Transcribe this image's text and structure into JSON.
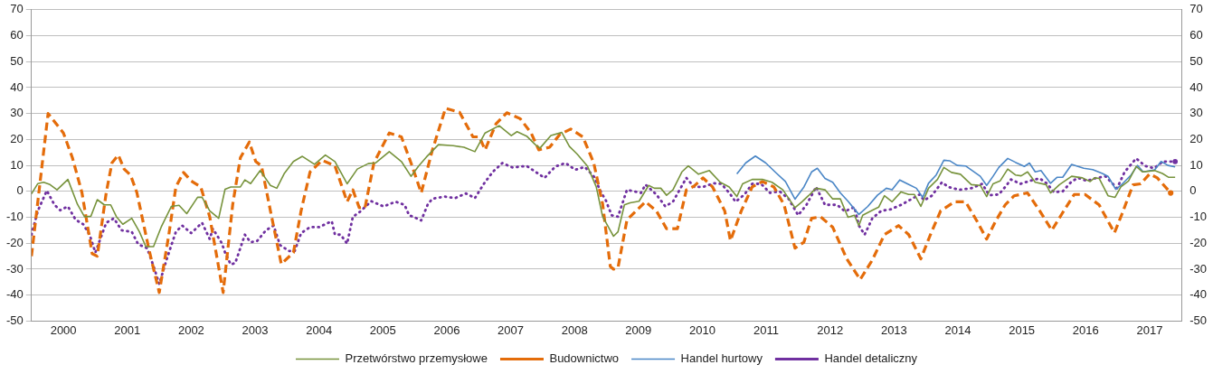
{
  "chart_data": {
    "type": "line",
    "xlim": [
      2000,
      2018
    ],
    "xticks": [
      {
        "value": 2000.5,
        "label": "2000"
      },
      {
        "value": 2001.5,
        "label": "2001"
      },
      {
        "value": 2002.5,
        "label": "2002"
      },
      {
        "value": 2003.5,
        "label": "2003"
      },
      {
        "value": 2004.5,
        "label": "2004"
      },
      {
        "value": 2005.5,
        "label": "2005"
      },
      {
        "value": 2006.5,
        "label": "2006"
      },
      {
        "value": 2007.5,
        "label": "2007"
      },
      {
        "value": 2008.5,
        "label": "2008"
      },
      {
        "value": 2009.5,
        "label": "2009"
      },
      {
        "value": 2010.5,
        "label": "2010"
      },
      {
        "value": 2011.5,
        "label": "2011"
      },
      {
        "value": 2012.5,
        "label": "2012"
      },
      {
        "value": 2013.5,
        "label": "2013"
      },
      {
        "value": 2014.5,
        "label": "2014"
      },
      {
        "value": 2015.5,
        "label": "2015"
      },
      {
        "value": 2016.5,
        "label": "2016"
      },
      {
        "value": 2017.5,
        "label": "2017"
      }
    ],
    "ylim": [
      -50,
      70
    ],
    "yticks": [
      -50,
      -40,
      -30,
      -20,
      -10,
      0,
      10,
      20,
      30,
      40,
      50,
      60,
      70
    ],
    "y2lim": [
      -50,
      70
    ],
    "y2ticks": [
      -50,
      -40,
      -30,
      -20,
      -10,
      0,
      10,
      20,
      30,
      40,
      50,
      60,
      70
    ],
    "grid": "y",
    "legend": "bottom",
    "marker": "none",
    "series": [
      {
        "name": "Przetwórstwo przemysłowe",
        "color": "#77933c",
        "line_style": "solid",
        "x": [
          2000.0,
          2000.1,
          2000.19,
          2000.29,
          2000.4,
          2000.57,
          2000.72,
          2000.83,
          2000.93,
          2001.03,
          2001.14,
          2001.24,
          2001.33,
          2001.43,
          2001.57,
          2001.69,
          2001.79,
          2001.91,
          2002.03,
          2002.19,
          2002.31,
          2002.43,
          2002.6,
          2002.67,
          2002.79,
          2002.93,
          2003.03,
          2003.12,
          2003.27,
          2003.34,
          2003.43,
          2003.58,
          2003.74,
          2003.84,
          2003.96,
          2004.1,
          2004.24,
          2004.43,
          2004.6,
          2004.75,
          2004.94,
          2005.1,
          2005.27,
          2005.39,
          2005.6,
          2005.79,
          2005.94,
          2006.06,
          2006.18,
          2006.37,
          2006.6,
          2006.77,
          2006.94,
          2007.1,
          2007.32,
          2007.51,
          2007.6,
          2007.75,
          2007.89,
          2007.96,
          2008.13,
          2008.3,
          2008.42,
          2008.54,
          2008.7,
          2008.84,
          2008.94,
          2009.11,
          2009.18,
          2009.28,
          2009.37,
          2009.51,
          2009.66,
          2009.75,
          2009.85,
          2009.94,
          2010.04,
          2010.18,
          2010.28,
          2010.44,
          2010.61,
          2010.78,
          2010.92,
          2011.04,
          2011.13,
          2011.28,
          2011.44,
          2011.59,
          2011.76,
          2011.95,
          2012.06,
          2012.16,
          2012.28,
          2012.42,
          2012.54,
          2012.66,
          2012.78,
          2012.88,
          2012.95,
          2013.01,
          2013.16,
          2013.26,
          2013.35,
          2013.47,
          2013.61,
          2013.73,
          2013.82,
          2013.92,
          2014.04,
          2014.18,
          2014.28,
          2014.4,
          2014.54,
          2014.71,
          2014.85,
          2014.95,
          2015.05,
          2015.16,
          2015.28,
          2015.4,
          2015.49,
          2015.59,
          2015.71,
          2015.88,
          2015.95,
          2016.09,
          2016.28,
          2016.45,
          2016.57,
          2016.64,
          2016.71,
          2016.85,
          2016.96,
          2017.05,
          2017.17,
          2017.29,
          2017.39,
          2017.58,
          2017.7,
          2017.8,
          2017.9
        ],
        "values": [
          -1,
          3,
          3.5,
          2.6,
          0.6,
          4.6,
          -5,
          -9.8,
          -9.6,
          -3.2,
          -5.2,
          -5.2,
          -9.8,
          -12.7,
          -10.4,
          -15.6,
          -21.3,
          -21.3,
          -13.8,
          -5.8,
          -5.4,
          -8.6,
          -2.3,
          -2.3,
          -7.5,
          -10.4,
          0.8,
          1.7,
          1.7,
          4.4,
          3,
          8,
          2.3,
          1.2,
          7,
          11.5,
          13.5,
          10.4,
          14,
          11.5,
          2.9,
          8.6,
          10.7,
          11,
          15.3,
          11.5,
          5.8,
          9.8,
          13.2,
          18,
          17.6,
          17,
          15.3,
          22.5,
          25.3,
          21.5,
          23,
          21.3,
          17.9,
          16.7,
          21.5,
          22.7,
          17.3,
          14.4,
          9.8,
          1.7,
          -9.8,
          -17.3,
          -15.6,
          -5.2,
          -4.4,
          -3.8,
          2.3,
          1.2,
          1.2,
          -1.5,
          0.6,
          7.5,
          9.8,
          6.6,
          8,
          3.5,
          1.7,
          -2,
          2.9,
          4.6,
          4.6,
          3.5,
          0.6,
          -6.3,
          -4,
          -1.7,
          1.2,
          0.6,
          -2.9,
          -2.9,
          -10,
          -9.2,
          -13.2,
          -9.2,
          -7.3,
          -6.1,
          -1.7,
          -4,
          -0.2,
          -1.2,
          -1.2,
          -5.8,
          1.2,
          4.6,
          9.2,
          7.3,
          6.6,
          2.6,
          2.3,
          -2,
          2.9,
          4,
          8.6,
          6.3,
          6,
          7.5,
          3.5,
          2.6,
          -0.6,
          2.6,
          5.8,
          5.2,
          3.8,
          5.2,
          5,
          -1.7,
          -2.3,
          1.7,
          4,
          9.6,
          7.5,
          8,
          6.9,
          5.4,
          5.4
        ]
      },
      {
        "name": "Budownictwo",
        "color": "#e46c0a",
        "line_style": "dashed",
        "x": [
          2000.0,
          2000.26,
          2000.5,
          2000.64,
          2000.79,
          2000.95,
          2001.03,
          2001.17,
          2001.26,
          2001.36,
          2001.45,
          2001.55,
          2001.65,
          2001.84,
          2002.0,
          2002.15,
          2002.26,
          2002.38,
          2002.5,
          2002.65,
          2002.79,
          2003.0,
          2003.15,
          2003.27,
          2003.41,
          2003.51,
          2003.6,
          2003.74,
          2003.91,
          2004.1,
          2004.22,
          2004.36,
          2004.55,
          2004.75,
          2004.94,
          2005.03,
          2005.13,
          2005.22,
          2005.36,
          2005.6,
          2005.79,
          2005.94,
          2006.1,
          2006.27,
          2006.48,
          2006.7,
          2006.91,
          2007.01,
          2007.1,
          2007.27,
          2007.44,
          2007.65,
          2007.82,
          2007.94,
          2008.11,
          2008.27,
          2008.44,
          2008.63,
          2008.8,
          2008.94,
          2009.06,
          2009.11,
          2009.18,
          2009.32,
          2009.61,
          2009.78,
          2009.94,
          2010.11,
          2010.25,
          2010.37,
          2010.51,
          2010.66,
          2010.85,
          2010.94,
          2011.11,
          2011.28,
          2011.44,
          2011.62,
          2011.78,
          2011.95,
          2012.09,
          2012.21,
          2012.35,
          2012.54,
          2012.76,
          2012.97,
          2013.16,
          2013.35,
          2013.57,
          2013.73,
          2013.92,
          2014.07,
          2014.23,
          2014.45,
          2014.62,
          2014.81,
          2014.95,
          2015.09,
          2015.24,
          2015.38,
          2015.59,
          2015.78,
          2015.97,
          2016.13,
          2016.32,
          2016.49,
          2016.71,
          2016.95,
          2017.07,
          2017.24,
          2017.36,
          2017.5,
          2017.62,
          2017.83
        ],
        "values": [
          -25,
          30,
          22.5,
          13,
          -0.5,
          -24,
          -25,
          -0.5,
          11,
          14,
          8.6,
          6.3,
          -0.5,
          -22.5,
          -39,
          -16.7,
          1.7,
          7.3,
          4,
          1.7,
          -9.8,
          -39,
          -5,
          13,
          19,
          11.5,
          9.8,
          -7.5,
          -28,
          -23.6,
          -7.5,
          7.5,
          12,
          9.8,
          -4,
          0.6,
          -6.3,
          -6.3,
          11,
          22.5,
          21,
          11,
          -0.6,
          15.5,
          32,
          30.5,
          21,
          21,
          16,
          26,
          30.3,
          28,
          22.5,
          16,
          17,
          22,
          24,
          21,
          11,
          -5,
          -29,
          -30,
          -29.4,
          -11,
          -4,
          -7.5,
          -14.4,
          -14.4,
          0.6,
          2,
          5.2,
          1.7,
          -7.5,
          -19,
          -7.5,
          1.7,
          3.8,
          1.7,
          -5.2,
          -21.9,
          -19.6,
          -10.4,
          -9.8,
          -13.8,
          -26,
          -34,
          -26.5,
          -16.7,
          -13.2,
          -16.7,
          -26,
          -16.7,
          -7.5,
          -4,
          -4,
          -12,
          -18.4,
          -11.5,
          -5.2,
          -1.7,
          -0.6,
          -7.5,
          -15,
          -8.6,
          -1.2,
          -1.2,
          -5.2,
          -16,
          -8.6,
          2.5,
          2.9,
          6.7,
          5.2,
          -0.6
        ]
      },
      {
        "name": "Handel hurtowy",
        "color": "#4a86c6",
        "line_style": "solid",
        "x": [
          2011.04,
          2011.18,
          2011.33,
          2011.49,
          2011.66,
          2011.8,
          2011.95,
          2012.09,
          2012.21,
          2012.3,
          2012.42,
          2012.54,
          2012.66,
          2012.78,
          2012.95,
          2013.09,
          2013.24,
          2013.38,
          2013.47,
          2013.59,
          2013.71,
          2013.85,
          2013.95,
          2014.04,
          2014.16,
          2014.28,
          2014.37,
          2014.49,
          2014.62,
          2014.74,
          2014.85,
          2014.95,
          2015.05,
          2015.14,
          2015.28,
          2015.4,
          2015.54,
          2015.62,
          2015.71,
          2015.8,
          2015.95,
          2016.05,
          2016.14,
          2016.28,
          2016.47,
          2016.61,
          2016.76,
          2016.85,
          2016.97,
          2017.05,
          2017.21,
          2017.31,
          2017.4,
          2017.58,
          2017.68,
          2017.79,
          2017.9
        ],
        "values": [
          6.7,
          11,
          13.6,
          11,
          7,
          3.8,
          -3,
          1.7,
          7.5,
          8.9,
          5,
          3.5,
          -0.6,
          -3.8,
          -8.9,
          -5.8,
          -1.5,
          1.2,
          0.6,
          4.4,
          2.9,
          1.2,
          -2.3,
          3.1,
          6.3,
          12,
          11.8,
          10,
          9.8,
          7.7,
          5.8,
          2.3,
          5.8,
          9.2,
          12.7,
          11.2,
          9.6,
          10.9,
          7.5,
          8,
          3.1,
          5.4,
          5.4,
          10.4,
          8.9,
          8.4,
          6.9,
          5.8,
          0.8,
          2.3,
          6.3,
          10,
          7.5,
          8.3,
          11.5,
          10,
          9.4
        ]
      },
      {
        "name": "Handel detaliczny",
        "color": "#7030a0",
        "line_style": "dotted",
        "x": [
          2000.0,
          2000.1,
          2000.24,
          2000.36,
          2000.45,
          2000.57,
          2000.69,
          2000.81,
          2000.91,
          2001.0,
          2001.17,
          2001.29,
          2001.41,
          2001.57,
          2001.67,
          2001.81,
          2001.91,
          2002.0,
          2002.12,
          2002.26,
          2002.36,
          2002.5,
          2002.67,
          2002.79,
          2002.84,
          2002.98,
          2003.03,
          2003.12,
          2003.19,
          2003.34,
          2003.43,
          2003.53,
          2003.67,
          2003.79,
          2003.89,
          2004.03,
          2004.12,
          2004.22,
          2004.36,
          2004.5,
          2004.7,
          2004.75,
          2004.84,
          2004.94,
          2005.03,
          2005.13,
          2005.32,
          2005.51,
          2005.7,
          2005.84,
          2005.91,
          2006.03,
          2006.1,
          2006.2,
          2006.27,
          2006.46,
          2006.63,
          2006.8,
          2006.94,
          2007.08,
          2007.22,
          2007.37,
          2007.53,
          2007.75,
          2007.89,
          2008.03,
          2008.2,
          2008.36,
          2008.51,
          2008.66,
          2008.8,
          2008.92,
          2008.99,
          2009.08,
          2009.18,
          2009.32,
          2009.54,
          2009.61,
          2009.78,
          2009.92,
          2010.04,
          2010.25,
          2010.37,
          2010.51,
          2010.68,
          2010.8,
          2010.94,
          2011.02,
          2011.16,
          2011.28,
          2011.42,
          2011.56,
          2011.71,
          2011.85,
          2012.0,
          2012.13,
          2012.28,
          2012.42,
          2012.61,
          2012.73,
          2012.88,
          2012.95,
          2013.04,
          2013.16,
          2013.3,
          2013.45,
          2013.61,
          2013.78,
          2013.9,
          2013.97,
          2014.09,
          2014.25,
          2014.35,
          2014.52,
          2014.71,
          2014.88,
          2014.99,
          2015.14,
          2015.24,
          2015.33,
          2015.48,
          2015.62,
          2015.78,
          2015.9,
          2016.0,
          2016.14,
          2016.28,
          2016.38,
          2016.52,
          2016.64,
          2016.81,
          2016.9,
          2016.99,
          2017.11,
          2017.29,
          2017.43,
          2017.57,
          2017.71,
          2017.9
        ],
        "values": [
          -16.7,
          -7.5,
          0.3,
          -5.2,
          -7.3,
          -5.8,
          -10.9,
          -12.7,
          -16.7,
          -23.6,
          -12.1,
          -10.4,
          -15,
          -15.6,
          -20.4,
          -21.9,
          -28.8,
          -35.7,
          -25.9,
          -15.6,
          -13.2,
          -16.1,
          -12.1,
          -18.4,
          -14.4,
          -20,
          -23.6,
          -28.2,
          -27.6,
          -16.7,
          -19.6,
          -19.2,
          -15,
          -13.2,
          -20.7,
          -23,
          -23,
          -16.1,
          -13.8,
          -13.8,
          -11.5,
          -16.7,
          -16.7,
          -20.2,
          -9.8,
          -8.1,
          -3.8,
          -5.8,
          -4,
          -5.2,
          -9.2,
          -10.4,
          -11.2,
          -5.2,
          -2.9,
          -2,
          -2.6,
          -0.8,
          -2.6,
          2.9,
          7.5,
          10.9,
          9.2,
          9.8,
          7.5,
          5.2,
          9.6,
          10.9,
          8.3,
          9.4,
          5.8,
          -0.6,
          -3.5,
          -9.2,
          -9.8,
          0.6,
          -0.6,
          2.6,
          -1.2,
          -5.8,
          -4,
          5.2,
          1.7,
          1.7,
          3.1,
          2.9,
          -1.2,
          -4,
          -1.2,
          2.9,
          2.9,
          -0.6,
          0,
          -2.9,
          -9.2,
          -5.2,
          1.7,
          -5.2,
          -5.2,
          -7.7,
          -6.1,
          -13.2,
          -16.7,
          -10.4,
          -7.5,
          -6.9,
          -5.2,
          -2.9,
          -1.2,
          -3.5,
          -1.7,
          3.5,
          1.7,
          0.6,
          1.2,
          2.9,
          -1.5,
          -1.2,
          1.7,
          4.6,
          2.9,
          4,
          5,
          2.9,
          -0.3,
          0,
          3.8,
          5.2,
          4,
          5,
          5.8,
          3.5,
          1.2,
          7.5,
          12.7,
          9.8,
          8.9,
          11.5,
          11.5
        ]
      }
    ]
  }
}
